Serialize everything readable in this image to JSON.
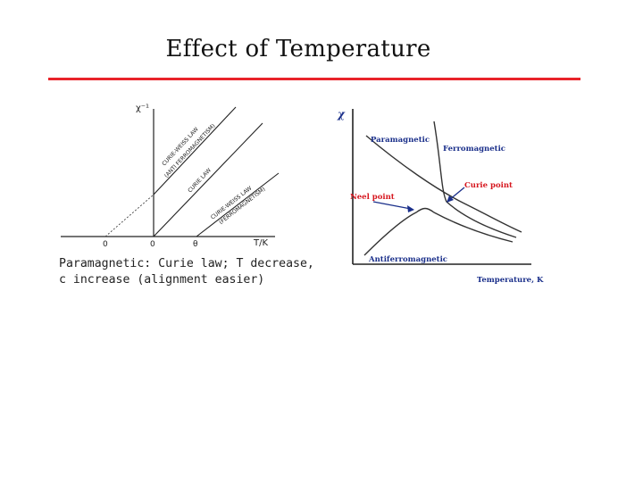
{
  "slide": {
    "title": "Effect of Temperature",
    "rule_color": "#e8232a"
  },
  "left_diagram": {
    "y_axis_label": "χ⁻¹",
    "x_axis_label": "T/K",
    "tick_labels": [
      "0",
      "0",
      "θ"
    ],
    "line_labels": {
      "curie_weiss_anti": [
        "CURIE-WEISS LAW",
        "(ANTI FERROMAGNETISM)"
      ],
      "curie": "CURIE LAW",
      "curie_weiss_ferro": [
        "CURIE-WEISS LAW",
        "(FERROMAGNETISM)"
      ]
    }
  },
  "caption": {
    "line1": "Paramagnetic: Curie law; T decrease,",
    "line2": "c increase (alignment easier)"
  },
  "right_diagram": {
    "y_axis_label": "χ",
    "x_axis_label": "Temperature, K",
    "labels": {
      "paramagnetic": "Paramagnetic",
      "ferromagnetic": "Ferromagnetic",
      "curie_point": "Curie point",
      "neel_point": "Neel point",
      "antiferromagnetic": "Antiferromagnetic"
    },
    "colors": {
      "axis_label": "#1a2f8a",
      "curve_label": "#1a2f8a",
      "point_label": "#d6161e"
    }
  }
}
